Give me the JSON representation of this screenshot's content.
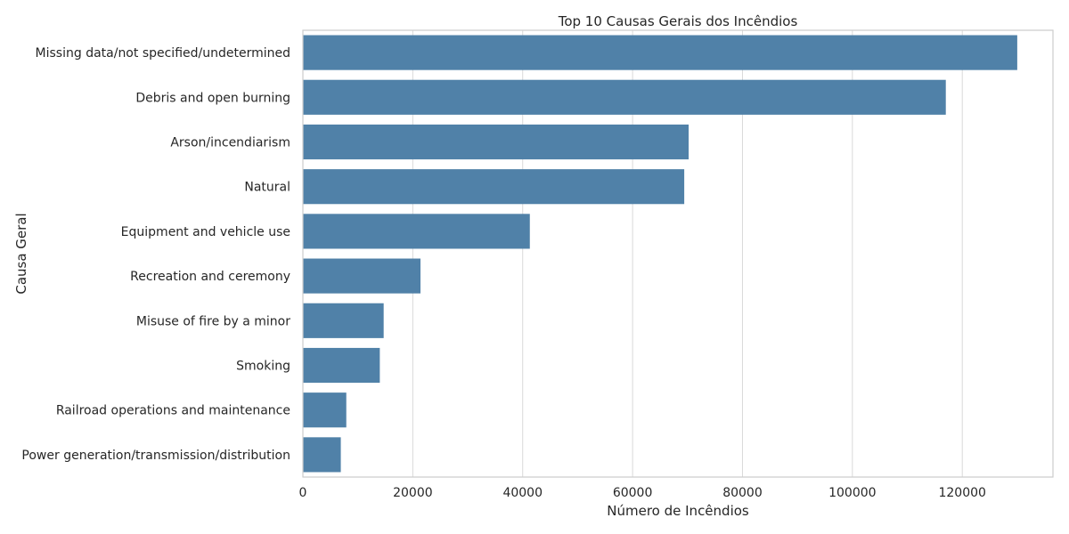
{
  "chart_data": {
    "type": "bar",
    "orientation": "horizontal",
    "title": "Top 10 Causas Gerais dos Incêndios",
    "xlabel": "Número de Incêndios",
    "ylabel": "Causa Geral",
    "categories": [
      "Missing data/not specified/undetermined",
      "Debris and open burning",
      "Arson/incendiarism",
      "Natural",
      "Equipment and vehicle use",
      "Recreation and ceremony",
      "Misuse of fire by a minor",
      "Smoking",
      "Railroad operations and maintenance",
      "Power generation/transmission/distribution"
    ],
    "values": [
      130000,
      117000,
      70200,
      69400,
      41300,
      21400,
      14700,
      14000,
      7900,
      6900
    ],
    "xlim": [
      0,
      136500
    ],
    "xticks": [
      0,
      20000,
      40000,
      60000,
      80000,
      100000,
      120000
    ],
    "xtick_labels": [
      "0",
      "20000",
      "40000",
      "60000",
      "80000",
      "100000",
      "120000"
    ],
    "grid": "vertical",
    "bar_color": "#5081a8",
    "grid_color": "#d9d9d9"
  }
}
